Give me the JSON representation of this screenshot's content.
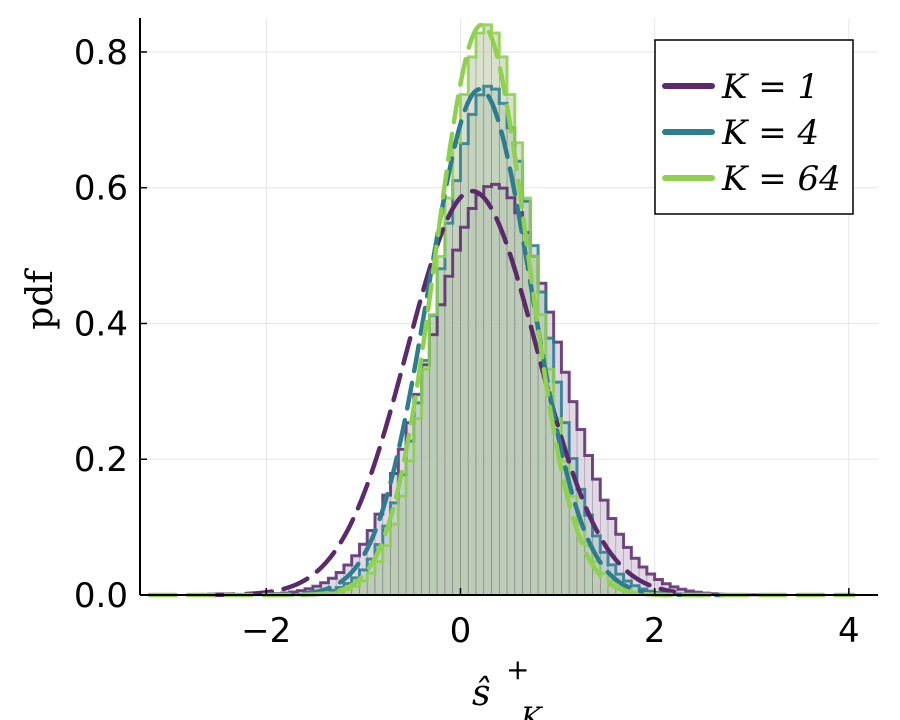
{
  "chart_data": {
    "type": "area",
    "xlabel": "ŝ",
    "xlabel_sup": "+",
    "xlabel_sub": "K",
    "ylabel": "pdf",
    "xlim": [
      -3.3,
      4.3
    ],
    "ylim": [
      0,
      0.85
    ],
    "xticks": [
      -2,
      0,
      2,
      4
    ],
    "yticks": [
      0.0,
      0.2,
      0.4,
      0.6,
      0.8
    ],
    "xtick_labels": [
      "−2",
      "0",
      "2",
      "4"
    ],
    "ytick_labels": [
      "0.0",
      "0.2",
      "0.4",
      "0.6",
      "0.8"
    ],
    "grid": true,
    "legend_position": "top-right",
    "bin_width": 0.08,
    "series": [
      {
        "name": "K = 1",
        "legend_label": "K = 1",
        "color": "#5b2a6b",
        "fill": "#c9b8cf",
        "hist_mean": 0.35,
        "hist_sd": 0.66,
        "hist_peak": 0.605,
        "pdf_mean": 0.12,
        "pdf_sd": 0.67,
        "pdf_peak": 0.595,
        "pdf_x_range": [
          -2.6,
          2.2
        ]
      },
      {
        "name": "K = 4",
        "legend_label": "K = 4",
        "color": "#2e7d8f",
        "fill": "#a7c6c8",
        "hist_mean": 0.3,
        "hist_sd": 0.53,
        "hist_peak": 0.75,
        "pdf_mean": 0.2,
        "pdf_sd": 0.53,
        "pdf_peak": 0.745,
        "pdf_x_range": [
          -2.0,
          2.7
        ]
      },
      {
        "name": "K = 64",
        "legend_label": "K = 64",
        "color": "#8fd14f",
        "fill": "#b9c9a2",
        "hist_mean": 0.28,
        "hist_sd": 0.47,
        "hist_peak": 0.84,
        "pdf_mean": 0.22,
        "pdf_sd": 0.47,
        "pdf_peak": 0.84,
        "pdf_x_range": [
          -3.2,
          4.05
        ]
      }
    ]
  }
}
